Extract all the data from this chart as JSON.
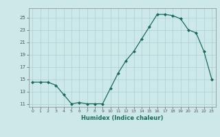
{
  "x": [
    0,
    1,
    2,
    3,
    4,
    5,
    6,
    7,
    8,
    9,
    10,
    11,
    12,
    13,
    14,
    15,
    16,
    17,
    18,
    19,
    20,
    21,
    22,
    23
  ],
  "y": [
    14.5,
    14.5,
    14.5,
    14.0,
    12.5,
    11.0,
    11.2,
    11.0,
    11.0,
    11.0,
    13.5,
    16.0,
    18.0,
    19.5,
    21.5,
    23.5,
    25.5,
    25.5,
    25.3,
    24.8,
    23.0,
    22.5,
    19.5,
    15.0
  ],
  "xlabel": "Humidex (Indice chaleur)",
  "xlim": [
    -0.5,
    23.5
  ],
  "ylim": [
    10.5,
    26.5
  ],
  "yticks": [
    11,
    13,
    15,
    17,
    19,
    21,
    23,
    25
  ],
  "xticks": [
    0,
    1,
    2,
    3,
    4,
    5,
    6,
    7,
    8,
    9,
    10,
    11,
    12,
    13,
    14,
    15,
    16,
    17,
    18,
    19,
    20,
    21,
    22,
    23
  ],
  "line_color": "#1a6b5a",
  "marker_color": "#1a6b5a",
  "bg_color": "#cde8e8",
  "grid_color": "#aad0d0",
  "axis_color": "#888888",
  "tick_color": "#555555"
}
